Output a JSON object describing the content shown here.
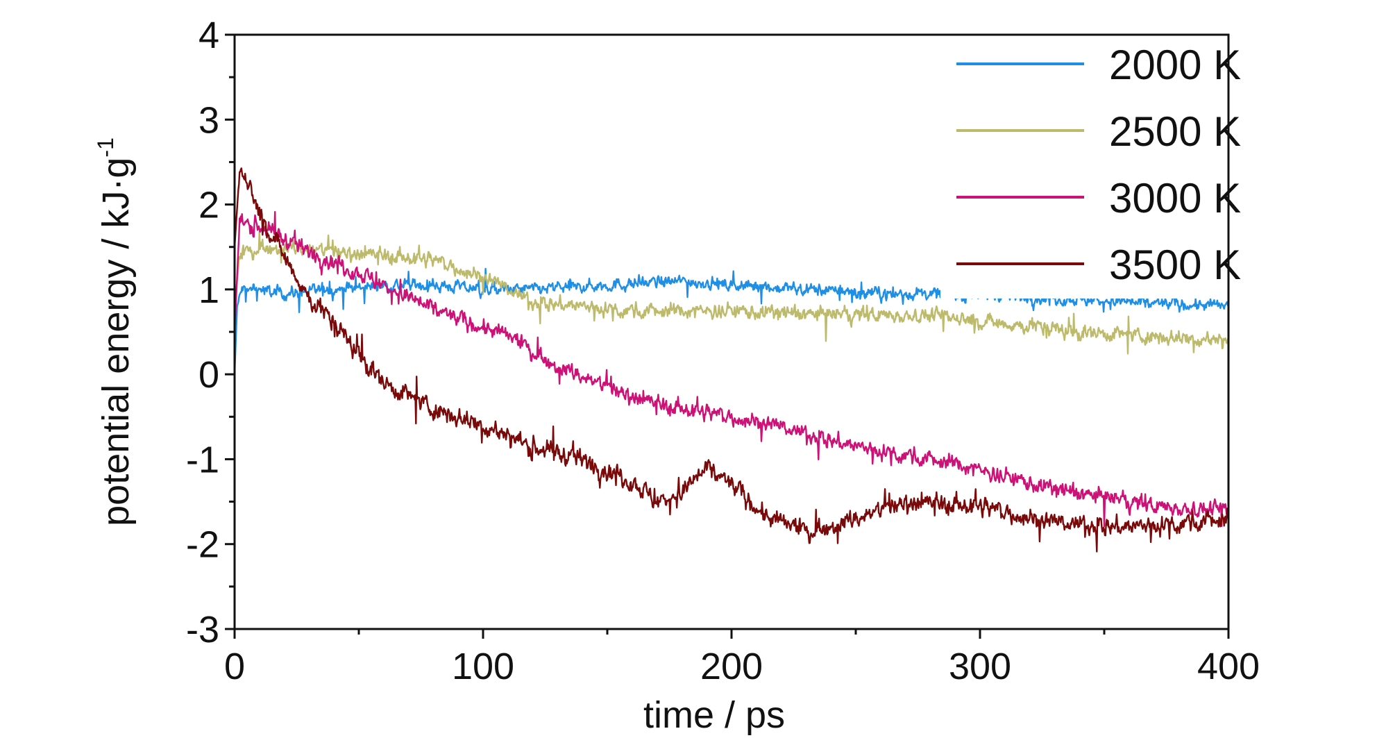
{
  "chart_data": {
    "type": "line",
    "title": "",
    "xlabel": "time / ps",
    "ylabel_main": "potential energy / kJ·g",
    "ylabel_sup": "-1",
    "xlim": [
      0,
      400
    ],
    "ylim": [
      -3,
      4
    ],
    "x_ticks": [
      "0",
      "100",
      "200",
      "300",
      "400"
    ],
    "x_tick_values": [
      0,
      100,
      200,
      300,
      400
    ],
    "y_ticks": [
      "-3",
      "-2",
      "-1",
      "0",
      "1",
      "2",
      "3",
      "4"
    ],
    "y_tick_values": [
      -3,
      -2,
      -1,
      0,
      1,
      2,
      3,
      4
    ],
    "grid": false,
    "legend_position": "top-right",
    "series": [
      {
        "name": "2000 K",
        "color": "#1f8fe6",
        "noise": 0.09,
        "points": [
          [
            0,
            0.0
          ],
          [
            1,
            0.8
          ],
          [
            3,
            1.0
          ],
          [
            10,
            1.0
          ],
          [
            20,
            0.95
          ],
          [
            40,
            1.0
          ],
          [
            60,
            1.05
          ],
          [
            80,
            1.05
          ],
          [
            100,
            1.0
          ],
          [
            120,
            1.0
          ],
          [
            150,
            1.05
          ],
          [
            180,
            1.1
          ],
          [
            200,
            1.05
          ],
          [
            230,
            1.0
          ],
          [
            260,
            0.95
          ],
          [
            300,
            0.95
          ],
          [
            330,
            0.9
          ],
          [
            360,
            0.85
          ],
          [
            400,
            0.8
          ]
        ]
      },
      {
        "name": "2500 K",
        "color": "#bdbb6b",
        "noise": 0.11,
        "points": [
          [
            0,
            0.8
          ],
          [
            2,
            1.4
          ],
          [
            10,
            1.5
          ],
          [
            20,
            1.5
          ],
          [
            40,
            1.45
          ],
          [
            60,
            1.4
          ],
          [
            80,
            1.35
          ],
          [
            100,
            1.15
          ],
          [
            110,
            1.0
          ],
          [
            120,
            0.85
          ],
          [
            140,
            0.8
          ],
          [
            160,
            0.75
          ],
          [
            200,
            0.75
          ],
          [
            240,
            0.7
          ],
          [
            280,
            0.7
          ],
          [
            310,
            0.6
          ],
          [
            340,
            0.5
          ],
          [
            370,
            0.45
          ],
          [
            400,
            0.4
          ]
        ]
      },
      {
        "name": "3000 K",
        "color": "#cc1177",
        "noise": 0.12,
        "points": [
          [
            0,
            0.5
          ],
          [
            2,
            1.8
          ],
          [
            10,
            1.75
          ],
          [
            20,
            1.6
          ],
          [
            30,
            1.45
          ],
          [
            50,
            1.2
          ],
          [
            70,
            0.9
          ],
          [
            90,
            0.65
          ],
          [
            110,
            0.45
          ],
          [
            130,
            0.1
          ],
          [
            150,
            -0.15
          ],
          [
            170,
            -0.35
          ],
          [
            190,
            -0.45
          ],
          [
            210,
            -0.55
          ],
          [
            230,
            -0.7
          ],
          [
            250,
            -0.85
          ],
          [
            270,
            -0.95
          ],
          [
            290,
            -1.05
          ],
          [
            310,
            -1.2
          ],
          [
            330,
            -1.35
          ],
          [
            350,
            -1.45
          ],
          [
            370,
            -1.55
          ],
          [
            400,
            -1.6
          ]
        ]
      },
      {
        "name": "3500 K",
        "color": "#7a0a0a",
        "noise": 0.14,
        "points": [
          [
            0,
            1.5
          ],
          [
            2,
            2.4
          ],
          [
            5,
            2.3
          ],
          [
            10,
            1.9
          ],
          [
            20,
            1.4
          ],
          [
            30,
            0.9
          ],
          [
            40,
            0.6
          ],
          [
            50,
            0.25
          ],
          [
            60,
            -0.1
          ],
          [
            80,
            -0.4
          ],
          [
            100,
            -0.6
          ],
          [
            120,
            -0.85
          ],
          [
            140,
            -1.0
          ],
          [
            160,
            -1.25
          ],
          [
            170,
            -1.5
          ],
          [
            180,
            -1.4
          ],
          [
            190,
            -1.1
          ],
          [
            200,
            -1.3
          ],
          [
            215,
            -1.7
          ],
          [
            230,
            -1.85
          ],
          [
            250,
            -1.7
          ],
          [
            270,
            -1.5
          ],
          [
            300,
            -1.55
          ],
          [
            330,
            -1.75
          ],
          [
            360,
            -1.8
          ],
          [
            380,
            -1.75
          ],
          [
            400,
            -1.7
          ]
        ]
      }
    ]
  }
}
